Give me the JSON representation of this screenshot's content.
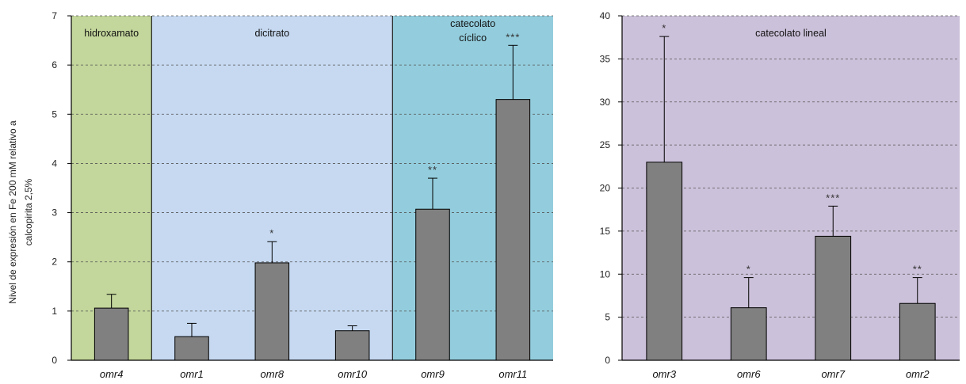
{
  "ylabel": [
    "Nivel de expresión en Fe 200 mM relativo a",
    "calcopirita 2,5%"
  ],
  "chart_data": [
    {
      "type": "bar",
      "ylim": [
        0,
        7
      ],
      "yticks": [
        "0",
        "1",
        "2",
        "3",
        "4",
        "5",
        "6",
        "7"
      ],
      "grid": true,
      "categories": [
        "omr4",
        "omr1",
        "omr8",
        "omr10",
        "omr9",
        "omr11"
      ],
      "values": [
        1.06,
        0.48,
        1.98,
        0.6,
        3.07,
        5.3
      ],
      "errors": [
        0.28,
        0.27,
        0.43,
        0.1,
        0.63,
        1.1
      ],
      "significance": [
        "",
        "",
        "*",
        "",
        "**",
        "***"
      ],
      "groups": [
        {
          "label": "hidroxamato",
          "color": "#c3d69b",
          "start": 0,
          "end": 0
        },
        {
          "label": "dicitrato",
          "color": "#c6d9f1",
          "start": 1,
          "end": 3
        },
        {
          "label": "catecolato cíclico",
          "color": "#93cddd",
          "start": 4,
          "end": 5
        }
      ],
      "group_labels_split": [
        [
          "hidroxamato"
        ],
        [
          "dicitrato"
        ],
        [
          "catecolato",
          "cíclico"
        ]
      ]
    },
    {
      "type": "bar",
      "ylim": [
        0,
        40
      ],
      "yticks": [
        "0",
        "5",
        "10",
        "15",
        "20",
        "25",
        "30",
        "35",
        "40"
      ],
      "grid": true,
      "categories": [
        "omr3",
        "omr6",
        "omr7",
        "omr2"
      ],
      "values": [
        23.0,
        6.1,
        14.4,
        6.6
      ],
      "errors": [
        14.6,
        3.5,
        3.5,
        3.0
      ],
      "significance": [
        "*",
        "*",
        "***",
        "**"
      ],
      "groups": [
        {
          "label": "catecolato lineal",
          "color": "#ccc1da",
          "start": 0,
          "end": 3
        }
      ],
      "group_labels_split": [
        [
          "catecolato lineal"
        ]
      ]
    }
  ],
  "colors": {
    "bar": "#808080",
    "bar_edge": "#000000",
    "divider": "#222222"
  }
}
